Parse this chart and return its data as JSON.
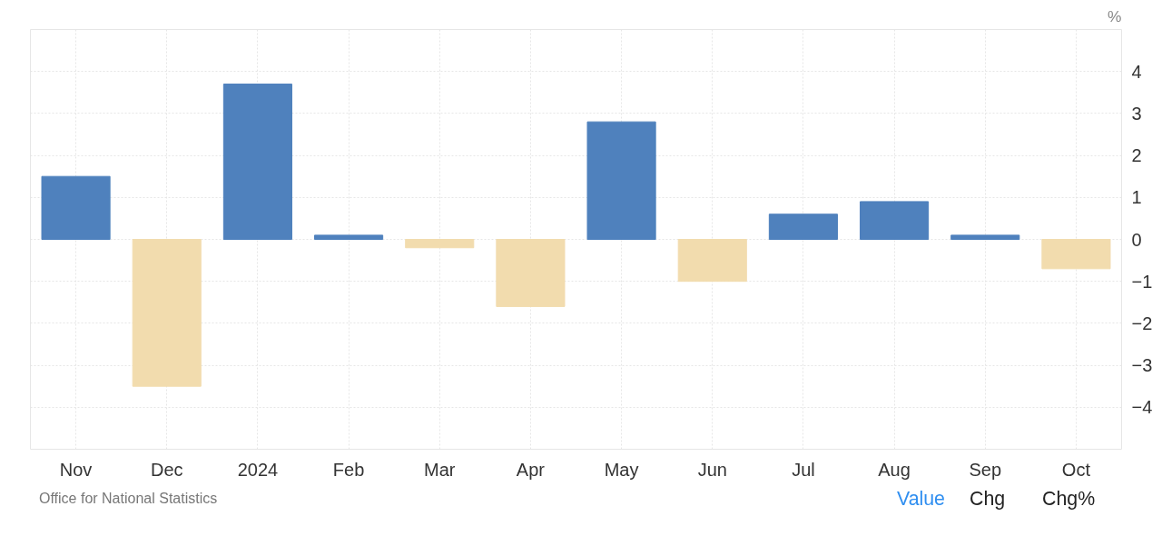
{
  "chart_data": {
    "type": "bar",
    "categories": [
      "Nov",
      "Dec",
      "2024",
      "Feb",
      "Mar",
      "Apr",
      "May",
      "Jun",
      "Jul",
      "Aug",
      "Sep",
      "Oct"
    ],
    "values": [
      1.5,
      -3.5,
      3.7,
      0.1,
      -0.2,
      -1.6,
      2.8,
      -1.0,
      0.6,
      0.9,
      0.1,
      -0.7
    ],
    "colors": [
      "#4f81bd",
      "#f2dcae",
      "#4f81bd",
      "#4f81bd",
      "#f2dcae",
      "#f2dcae",
      "#4f81bd",
      "#f2dcae",
      "#4f81bd",
      "#4f81bd",
      "#4f81bd",
      "#f2dcae"
    ],
    "ylabel": "%",
    "ylim": [
      -5,
      5
    ],
    "yticks": [
      -4,
      -3,
      -2,
      -1,
      0,
      1,
      2,
      3,
      4
    ],
    "grid": true,
    "annotations": [
      "Office for National Statistics",
      "Value",
      "Chg",
      "Chg%"
    ]
  }
}
